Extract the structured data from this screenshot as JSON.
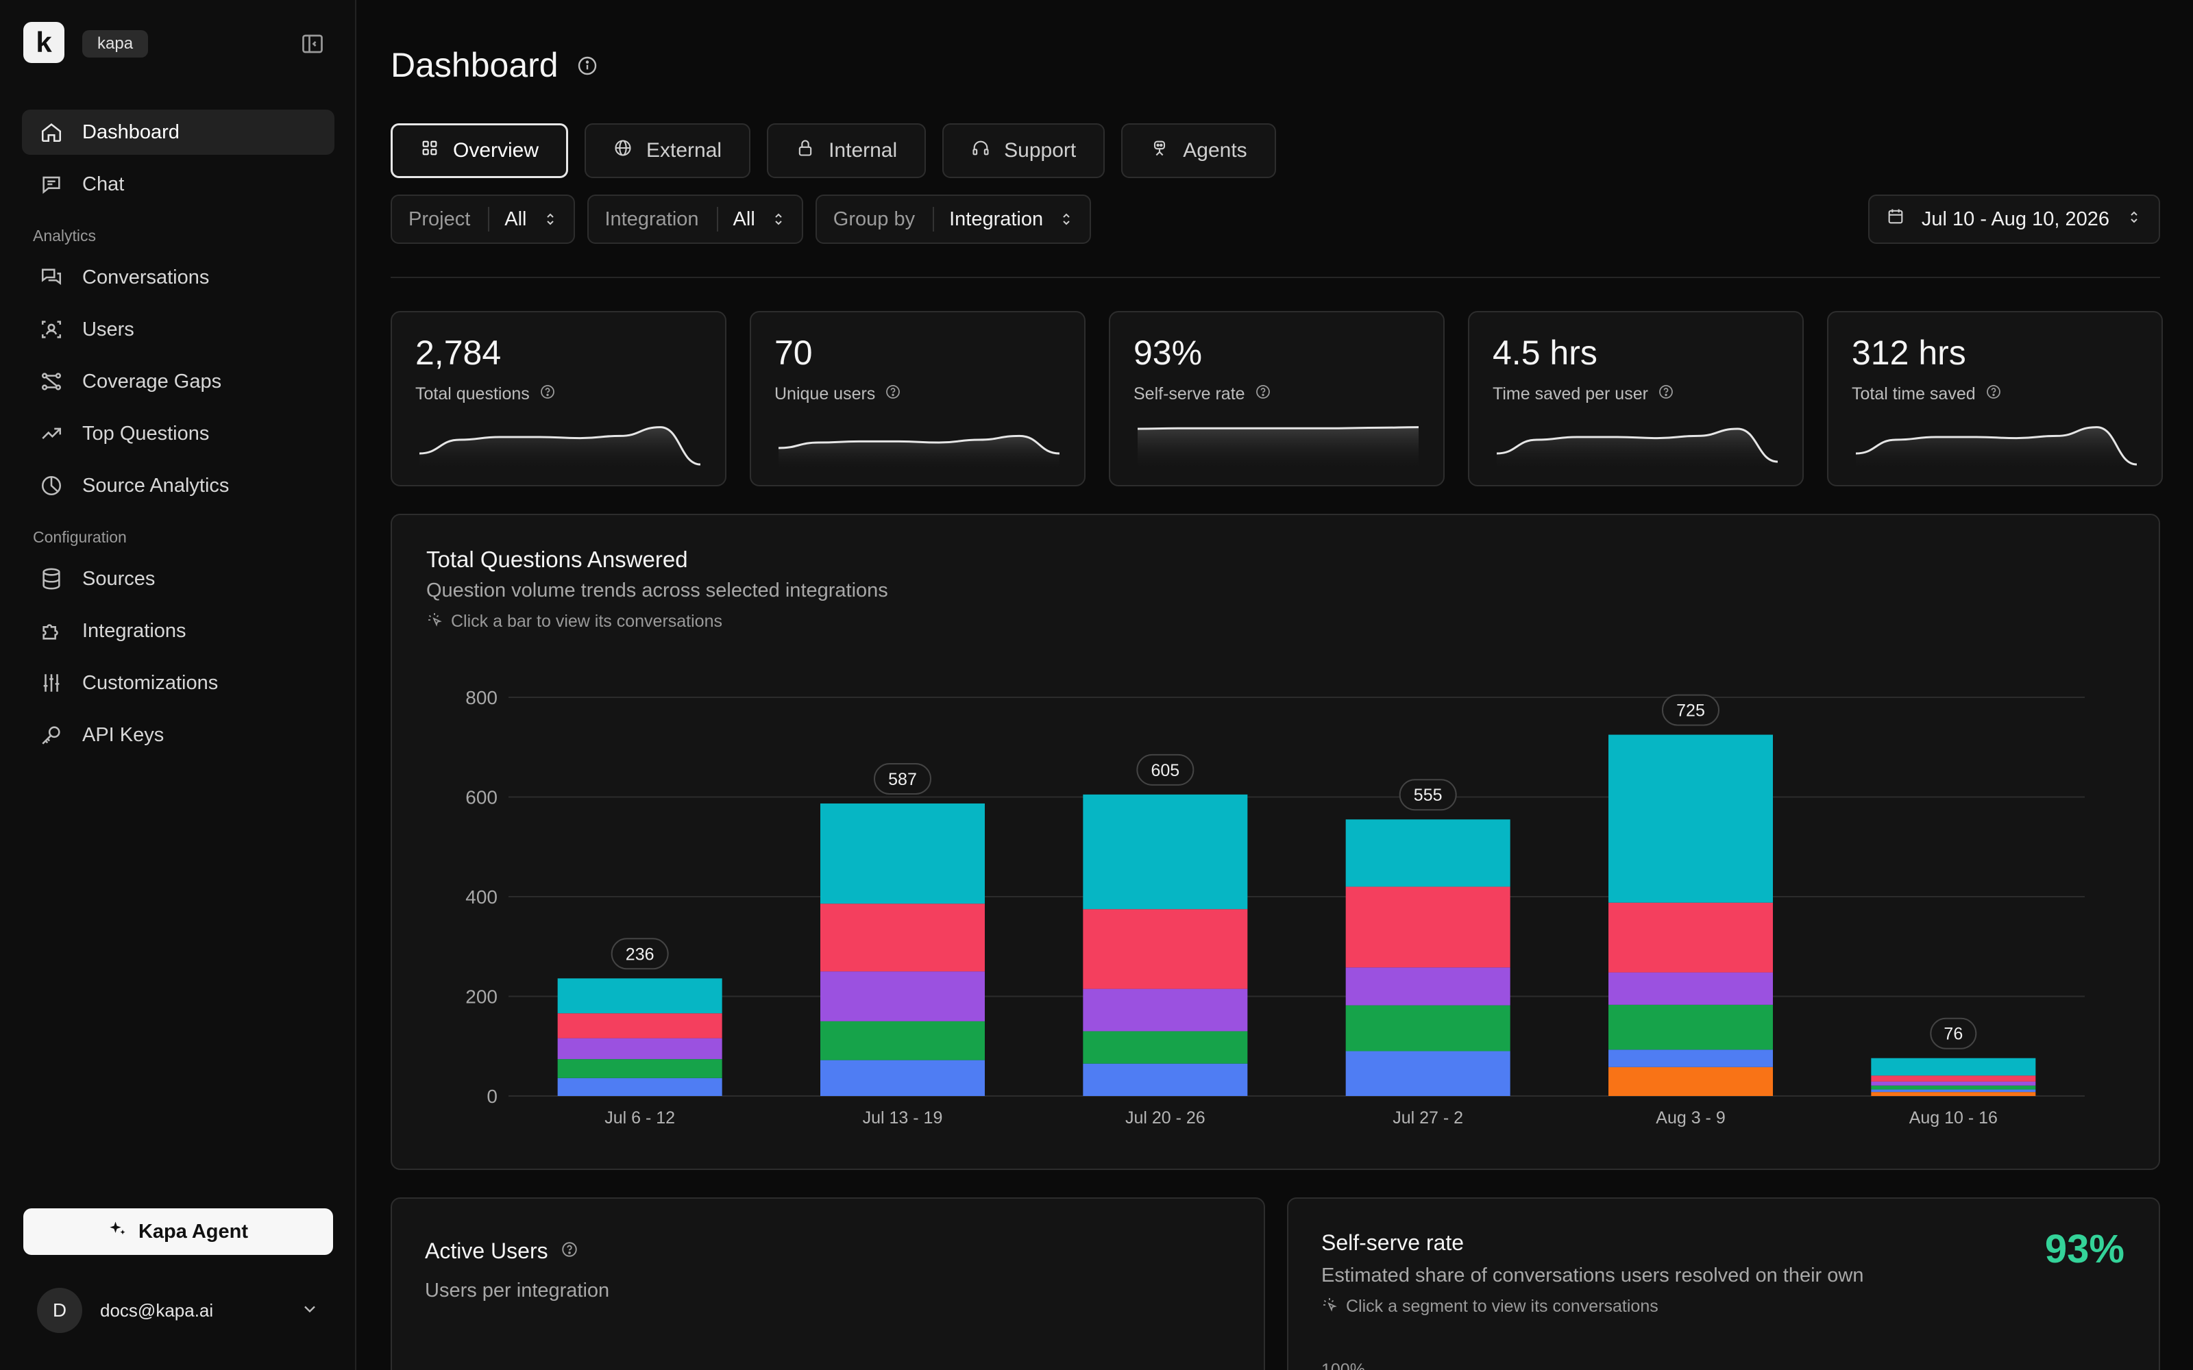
{
  "app": {
    "logo_letter": "k",
    "org": "kapa"
  },
  "sidebar": {
    "items_top": [
      {
        "label": "Dashboard",
        "icon": "home-icon",
        "active": true
      },
      {
        "label": "Chat",
        "icon": "chat-icon"
      }
    ],
    "analytics_label": "Analytics",
    "analytics": [
      {
        "label": "Conversations",
        "icon": "conversations-icon"
      },
      {
        "label": "Users",
        "icon": "users-icon"
      },
      {
        "label": "Coverage Gaps",
        "icon": "coverage-gaps-icon"
      },
      {
        "label": "Top Questions",
        "icon": "trending-icon"
      },
      {
        "label": "Source Analytics",
        "icon": "pie-chart-icon"
      }
    ],
    "config_label": "Configuration",
    "configuration": [
      {
        "label": "Sources",
        "icon": "database-icon"
      },
      {
        "label": "Integrations",
        "icon": "puzzle-icon"
      },
      {
        "label": "Customizations",
        "icon": "sliders-icon"
      },
      {
        "label": "API Keys",
        "icon": "key-icon"
      }
    ],
    "agent_button": "Kapa Agent",
    "user": {
      "initial": "D",
      "email": "docs@kapa.ai"
    }
  },
  "header": {
    "title": "Dashboard"
  },
  "tabs": [
    {
      "label": "Overview",
      "icon": "grid-icon",
      "active": true
    },
    {
      "label": "External",
      "icon": "globe-icon"
    },
    {
      "label": "Internal",
      "icon": "lock-icon"
    },
    {
      "label": "Support",
      "icon": "headset-icon"
    },
    {
      "label": "Agents",
      "icon": "agent-icon"
    }
  ],
  "filters": [
    {
      "label": "Project",
      "value": "All"
    },
    {
      "label": "Integration",
      "value": "All"
    },
    {
      "label": "Group by",
      "value": "Integration"
    }
  ],
  "date_range": "Jul 10 - Aug 10, 2026",
  "kpis": [
    {
      "value": "2,784",
      "label": "Total questions",
      "spark": [
        0.3,
        0.55,
        0.6,
        0.6,
        0.58,
        0.62,
        0.78,
        0.1
      ]
    },
    {
      "value": "70",
      "label": "Unique users",
      "spark": [
        0.4,
        0.5,
        0.52,
        0.52,
        0.5,
        0.55,
        0.62,
        0.3
      ]
    },
    {
      "value": "93%",
      "label": "Self-serve rate",
      "spark": [
        0.75,
        0.76,
        0.76,
        0.76,
        0.76,
        0.76,
        0.77,
        0.78
      ]
    },
    {
      "value": "4.5 hrs",
      "label": "Time saved per user",
      "spark": [
        0.3,
        0.55,
        0.6,
        0.6,
        0.58,
        0.62,
        0.75,
        0.15
      ]
    },
    {
      "value": "312 hrs",
      "label": "Total time saved",
      "spark": [
        0.3,
        0.55,
        0.6,
        0.6,
        0.58,
        0.62,
        0.78,
        0.1
      ]
    }
  ],
  "main_chart": {
    "title": "Total Questions Answered",
    "subtitle": "Question volume trends across selected integrations",
    "hint": "Click a bar to view its conversations"
  },
  "chart_data": {
    "type": "bar",
    "stacked": true,
    "categories": [
      "Jul 6 - 12",
      "Jul 13 - 19",
      "Jul 20 - 26",
      "Jul 27 - 2",
      "Aug 3 - 9",
      "Aug 10 - 16"
    ],
    "totals": [
      236,
      587,
      605,
      555,
      725,
      76
    ],
    "ylim": [
      0,
      800
    ],
    "yticks": [
      0,
      200,
      400,
      600,
      800
    ],
    "grid": true,
    "series": [
      {
        "color": "#f97316",
        "values": [
          0,
          0,
          0,
          0,
          58,
          8
        ]
      },
      {
        "color": "#4f7df3",
        "values": [
          36,
          72,
          65,
          90,
          35,
          5
        ]
      },
      {
        "color": "#16a34a",
        "values": [
          38,
          78,
          65,
          92,
          90,
          8
        ]
      },
      {
        "color": "#9b51e0",
        "values": [
          42,
          100,
          85,
          76,
          65,
          8
        ]
      },
      {
        "color": "#f43f5e",
        "values": [
          50,
          136,
          160,
          162,
          140,
          12
        ]
      },
      {
        "color": "#06b6c4",
        "values": [
          70,
          201,
          230,
          135,
          337,
          35
        ]
      }
    ]
  },
  "active_users": {
    "title": "Active Users",
    "subtitle": "Users per integration"
  },
  "self_serve": {
    "title": "Self-serve rate",
    "subtitle": "Estimated share of conversations users resolved on their own",
    "hint": "Click a segment to view its conversations",
    "value": "93%",
    "axis_top": "100%"
  }
}
